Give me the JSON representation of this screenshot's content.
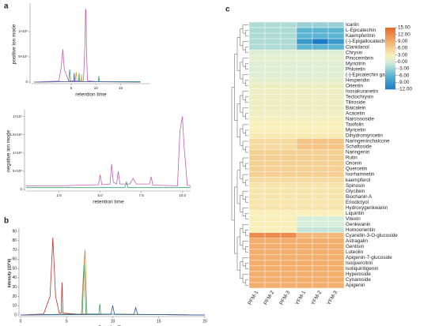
{
  "chart_data": [
    {
      "type": "line",
      "panel_label": "a",
      "ylabel": "positive ion mode",
      "xlabel": "retention time",
      "xlim": [
        -3,
        21
      ],
      "ylim": [
        0,
        150000000
      ],
      "xticks": [
        5,
        10,
        15
      ],
      "yticks": [
        {
          "value": 0,
          "label": "0"
        },
        {
          "value": 50000000,
          "label": "5×10⁷"
        },
        {
          "value": 100000000,
          "label": "1×10⁸"
        }
      ],
      "series": [
        {
          "color": "#c060b0",
          "x": [
            -2.5,
            2.5,
            3.0,
            3.3,
            3.6,
            4.5,
            7.5,
            7.8,
            7.9,
            8.0,
            8.1,
            8.3,
            10,
            17,
            19
          ],
          "values": [
            0,
            2000000,
            30000000,
            65000000,
            25000000,
            2000000,
            3000000,
            80000000,
            145000000,
            140000000,
            60000000,
            3000000,
            1000000,
            1000000,
            0
          ]
        },
        {
          "color": "#3aa070",
          "x": [
            -2.5,
            4.5,
            4.7,
            4.9,
            6.5,
            6.6,
            6.7,
            10.5,
            10.6,
            10.7,
            19
          ],
          "values": [
            0,
            1000000,
            25000000,
            1000000,
            1000000,
            18000000,
            1000000,
            1000000,
            12000000,
            1000000,
            1000000
          ]
        },
        {
          "color": "#e0a030",
          "x": [
            -2.5,
            5.8,
            6.0,
            6.2,
            7.0,
            7.1,
            7.2,
            19
          ],
          "values": [
            0,
            1000000,
            20000000,
            1000000,
            1000000,
            15000000,
            1000000,
            0
          ]
        },
        {
          "color": "#4060c0",
          "x": [
            -2.5,
            5.5,
            5.6,
            5.7,
            19
          ],
          "values": [
            0,
            1000000,
            18000000,
            1000000,
            0
          ]
        }
      ]
    },
    {
      "type": "line",
      "ylabel": "negative ion mode",
      "xlabel": "retention time",
      "xlim": [
        0.5,
        10.5
      ],
      "ylim": [
        0,
        21000000
      ],
      "xticks": [
        2.5,
        {
          "value": 5,
          "label": "5.0"
        },
        7.5,
        {
          "value": 10,
          "label": "10.0"
        }
      ],
      "yticks": [
        {
          "value": 0,
          "label": "0"
        },
        {
          "value": 5000000,
          "label": "5×10⁶"
        },
        {
          "value": 10000000,
          "label": "1×10⁷"
        },
        {
          "value": 15000000,
          "label": "1.5×10⁷"
        },
        {
          "value": 20000000,
          "label": "2×10⁷"
        }
      ],
      "series": [
        {
          "color": "#c060b0",
          "x": [
            0.5,
            2.5,
            4.9,
            5.0,
            5.1,
            5.6,
            5.7,
            5.8,
            6.0,
            6.1,
            6.2,
            6.8,
            7.0,
            7.2,
            8.0,
            8.1,
            8.2,
            9.7,
            9.85,
            10.0,
            10.1,
            10.3,
            10.5
          ],
          "values": [
            1000000,
            1000000,
            1300000,
            4000000,
            1300000,
            1500000,
            7000000,
            2000000,
            1500000,
            5000000,
            1500000,
            1500000,
            3000000,
            1500000,
            1500000,
            3500000,
            1200000,
            1000000,
            16000000,
            20000000,
            12000000,
            1200000,
            1000000
          ]
        },
        {
          "color": "#3aa070",
          "x": [
            0.5,
            6.5,
            6.6,
            6.7,
            10.5
          ],
          "values": [
            500000,
            500000,
            2000000,
            500000,
            500000
          ]
        }
      ]
    },
    {
      "type": "line",
      "panel_label": "b",
      "ylabel": "Intensity (10^6)",
      "xlabel": "Retention Time",
      "xlim": [
        0,
        20
      ],
      "ylim": [
        0,
        90
      ],
      "xticks": [
        0,
        5,
        10,
        15,
        20
      ],
      "yticks": [
        0,
        10,
        20,
        30,
        40,
        50,
        60,
        70,
        80,
        90
      ],
      "series": [
        {
          "color": "#c0302a",
          "x": [
            0,
            2.5,
            3.2,
            3.5,
            3.8,
            4.2,
            4.4,
            4.5,
            4.6,
            6,
            20
          ],
          "values": [
            0,
            1,
            20,
            83,
            20,
            2,
            2,
            35,
            2,
            1,
            0
          ]
        },
        {
          "color": "#d08030",
          "x": [
            0,
            6.6,
            6.8,
            7.0,
            7.2,
            20
          ],
          "values": [
            0,
            1,
            40,
            70,
            1,
            0
          ]
        },
        {
          "color": "#40a060",
          "x": [
            0,
            6.7,
            6.9,
            7.1,
            8.5,
            8.6,
            8.7,
            20
          ],
          "values": [
            0,
            1,
            55,
            1,
            1,
            12,
            1,
            0
          ]
        },
        {
          "color": "#3050b0",
          "x": [
            0,
            9.8,
            10,
            10.2,
            12.3,
            12.5,
            12.7,
            20
          ],
          "values": [
            0,
            0.5,
            10,
            0.5,
            0.5,
            8,
            0.5,
            0
          ]
        }
      ]
    },
    {
      "type": "heatmap",
      "panel_label": "c",
      "columns": [
        "PFM-1",
        "PFM-2",
        "PFM-3",
        "YFM-1",
        "YFM-2",
        "YFM-3"
      ],
      "rows": [
        "Icariin",
        "L-Epicatechin",
        "Kaempferitrin",
        "(-)-Epigallocatechin",
        "Clanidanol",
        "Chrysin",
        "Pinocembrin",
        "Myricitrin",
        "Phloretin",
        "(-)-Epicatechin gallate",
        "Hesperidin",
        "Orientin",
        "Isosakuranetin",
        "Tectochrysin",
        "Tiliroside",
        "Baicalein",
        "Acacetin",
        "Narcissoside",
        "Taxifolin",
        "Myricetin",
        "Dihydromyricetin",
        "Naringeninchalcone",
        "Schaftoside",
        "Naringenin",
        "Rutin",
        "Ononin",
        "Quercetin",
        "Isorhamnetin",
        "kaempferol",
        "Spinosin",
        "Glycitein",
        "Biochanin A",
        "Eriodictyol",
        "Hydroxygenkwanin",
        "Liquiritin",
        "Vitexin",
        "Genkwanin",
        "Homoorientin",
        "Cyanidin-3-O-glucoside",
        "Astragalin",
        "Gentisin",
        "Luteolin",
        "Apigenin-7-glucoside",
        "Isoquercitrin",
        "isoliquiritigenin",
        "Hyperoside",
        "Cynaroside",
        "Apigenin"
      ],
      "values": [
        [
          -2,
          -2,
          -2,
          -3,
          -3,
          -3
        ],
        [
          -2,
          -2,
          -2,
          -6,
          -6,
          -6
        ],
        [
          -2,
          -2,
          -2,
          -6,
          -6,
          -6
        ],
        [
          -2,
          -2,
          -2,
          -9,
          -12,
          -9
        ],
        [
          -2,
          -2,
          -2,
          -6,
          -6,
          -6
        ],
        [
          0.5,
          0.5,
          0.5,
          0.5,
          0.5,
          0.5
        ],
        [
          1,
          1,
          1,
          1,
          1,
          1
        ],
        [
          0.5,
          0.5,
          0.5,
          0.5,
          0.5,
          0.5
        ],
        [
          0.5,
          0.5,
          0.5,
          0.5,
          0.5,
          0.5
        ],
        [
          0.5,
          0.5,
          0.5,
          0.5,
          0.5,
          0.5
        ],
        [
          1,
          1,
          1,
          1,
          1,
          1
        ],
        [
          2,
          2,
          2,
          2,
          2,
          2
        ],
        [
          2,
          2,
          2,
          2,
          2,
          2
        ],
        [
          2,
          2,
          2,
          2,
          2,
          2
        ],
        [
          2,
          2,
          2,
          2,
          2,
          2
        ],
        [
          2,
          2,
          2,
          2,
          2,
          2
        ],
        [
          2,
          2,
          2,
          2,
          2,
          2
        ],
        [
          2.5,
          2.5,
          2.5,
          2.5,
          2.5,
          2.5
        ],
        [
          3,
          3,
          3,
          3,
          3,
          3
        ],
        [
          3,
          3,
          3,
          3,
          3,
          3
        ],
        [
          3.5,
          3.5,
          3.5,
          3.5,
          3.5,
          3.5
        ],
        [
          5,
          5,
          5,
          7,
          7,
          7
        ],
        [
          5,
          5,
          5,
          7,
          7,
          7
        ],
        [
          6,
          6,
          6,
          6,
          6,
          6
        ],
        [
          6,
          6,
          6,
          6,
          6,
          6
        ],
        [
          6,
          6,
          6,
          6,
          6,
          6
        ],
        [
          6,
          6,
          6,
          6,
          6,
          6
        ],
        [
          6,
          6,
          6,
          6,
          6,
          6
        ],
        [
          5,
          5,
          5,
          5,
          5,
          5
        ],
        [
          4,
          4,
          4,
          4,
          4,
          4
        ],
        [
          4,
          4,
          4,
          4,
          4,
          4
        ],
        [
          4,
          4,
          4,
          4,
          4,
          4
        ],
        [
          4,
          4,
          4,
          4,
          4,
          4
        ],
        [
          4,
          4,
          4,
          4,
          4,
          4
        ],
        [
          3,
          3,
          3,
          3,
          3,
          3
        ],
        [
          3,
          3,
          3,
          0,
          0,
          0
        ],
        [
          3,
          3,
          3,
          0,
          0,
          0
        ],
        [
          3,
          3,
          3,
          -1,
          -1,
          -1
        ],
        [
          12,
          12,
          12,
          8,
          8,
          8
        ],
        [
          9,
          9,
          9,
          9,
          9,
          9
        ],
        [
          9,
          9,
          9,
          9,
          9,
          9
        ],
        [
          9,
          9,
          9,
          9,
          9,
          9
        ],
        [
          9,
          9,
          9,
          9,
          9,
          9
        ],
        [
          9,
          9,
          9,
          9,
          9,
          9
        ],
        [
          9,
          9,
          9,
          9,
          9,
          9
        ],
        [
          9,
          9,
          9,
          9,
          9,
          9
        ],
        [
          9,
          9,
          9,
          9,
          9,
          9
        ],
        [
          9,
          9,
          9,
          9,
          9,
          9
        ]
      ],
      "clim": [
        -12,
        15
      ],
      "colorscale": [
        {
          "value": -12,
          "color": "#1b7bc4"
        },
        {
          "value": -6,
          "color": "#5ab4d2"
        },
        {
          "value": 0,
          "color": "#d8eed8"
        },
        {
          "value": 3,
          "color": "#f8f0b8"
        },
        {
          "value": 9,
          "color": "#f3ae6c"
        },
        {
          "value": 15,
          "color": "#e8692c"
        }
      ],
      "cticks": [
        {
          "value": 15,
          "label": "15.00"
        },
        {
          "value": 12,
          "label": "12.00"
        },
        {
          "value": 9,
          "label": "9.00"
        },
        {
          "value": 6,
          "label": "6.00"
        },
        {
          "value": 3,
          "label": "3.00"
        },
        {
          "value": 0,
          "label": "0.00"
        },
        {
          "value": -3,
          "label": "-3.00"
        },
        {
          "value": -6,
          "label": "-6.00"
        },
        {
          "value": -9,
          "label": "-9.00"
        },
        {
          "value": -12,
          "label": "-12.00"
        }
      ]
    }
  ]
}
